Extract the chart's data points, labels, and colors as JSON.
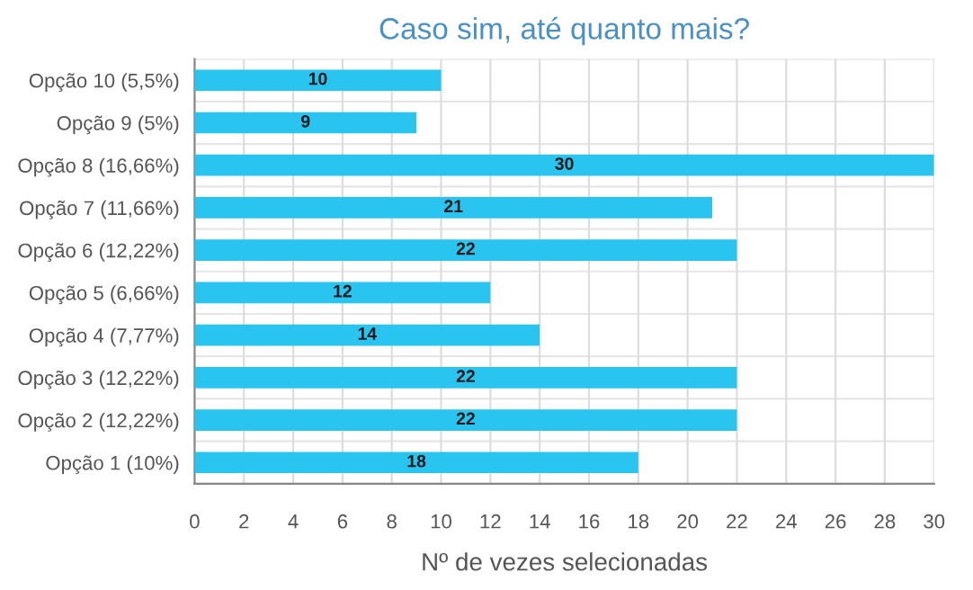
{
  "chart_data": {
    "type": "bar",
    "orientation": "horizontal",
    "title": "Caso sim, até quanto mais?",
    "xlabel": "Nº de vezes selecionadas",
    "categories": [
      "Opção 10 (5,5%)",
      "Opção 9 (5%)",
      "Opção 8 (16,66%)",
      "Opção 7 (11,66%)",
      "Opção 6 (12,22%)",
      "Opção 5 (6,66%)",
      "Opção 4 (7,77%)",
      "Opção 3 (12,22%)",
      "Opção 2 (12,22%)",
      "Opção 1 (10%)"
    ],
    "values": [
      10,
      9,
      30,
      21,
      22,
      12,
      14,
      22,
      22,
      18
    ],
    "color": "#29c5f0",
    "xlim": [
      0,
      30
    ],
    "xticks": [
      0,
      2,
      4,
      6,
      8,
      10,
      12,
      14,
      16,
      18,
      20,
      22,
      24,
      26,
      28,
      30
    ],
    "grid": true,
    "data_labels": true
  }
}
